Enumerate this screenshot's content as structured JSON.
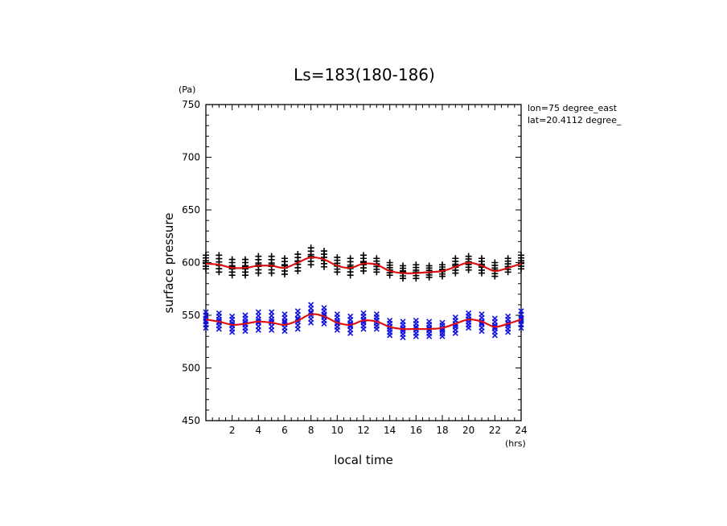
{
  "chart_data": {
    "type": "scatter",
    "title": "Ls=183(180-186)",
    "xlabel": "local time",
    "ylabel": "surface pressure",
    "x_unit": "(hrs)",
    "y_unit": "(Pa)",
    "xlim": [
      0,
      24
    ],
    "ylim": [
      450,
      750
    ],
    "x_ticks": [
      2,
      4,
      6,
      8,
      10,
      12,
      14,
      16,
      18,
      20,
      22,
      24
    ],
    "y_ticks": [
      450,
      500,
      550,
      600,
      650,
      700,
      750
    ],
    "annotations": [
      "lon=75 degree_east",
      "lat=20.4112 degree_"
    ],
    "colors": {
      "upper_markers": "#000000",
      "lower_markers": "#1010e0",
      "fit_line": "#e01010"
    },
    "series": [
      {
        "marker": "plus",
        "color": "#000000",
        "x": [
          0,
          1,
          2,
          3,
          4,
          5,
          6,
          7,
          8,
          9,
          10,
          11,
          12,
          13,
          14,
          15,
          16,
          17,
          18,
          19,
          20,
          21,
          22,
          23,
          24
        ],
        "y": [
          600,
          598,
          596,
          596,
          598,
          598,
          597,
          601,
          606,
          602,
          597,
          596,
          600,
          598,
          593,
          591,
          591,
          591,
          593,
          597,
          600,
          597,
          593,
          596,
          600
        ],
        "min": [
          594,
          591,
          588,
          588,
          590,
          590,
          589,
          592,
          598,
          596,
          591,
          588,
          592,
          591,
          588,
          585,
          585,
          586,
          587,
          590,
          593,
          590,
          587,
          591,
          594
        ],
        "max": [
          607,
          607,
          603,
          603,
          606,
          606,
          604,
          608,
          614,
          611,
          605,
          604,
          607,
          604,
          600,
          597,
          598,
          597,
          598,
          604,
          606,
          604,
          600,
          604,
          607
        ]
      },
      {
        "marker": "cross",
        "color": "#1010e0",
        "x": [
          0,
          1,
          2,
          3,
          4,
          5,
          6,
          7,
          8,
          9,
          10,
          11,
          12,
          13,
          14,
          15,
          16,
          17,
          18,
          19,
          20,
          21,
          22,
          23,
          24
        ],
        "y": [
          545,
          544,
          541,
          542,
          544,
          544,
          543,
          546,
          552,
          550,
          543,
          541,
          545,
          545,
          539,
          537,
          538,
          537,
          537,
          541,
          546,
          543,
          539,
          542,
          546
        ],
        "min": [
          538,
          537,
          534,
          535,
          536,
          536,
          535,
          537,
          543,
          542,
          536,
          533,
          537,
          537,
          531,
          529,
          530,
          530,
          530,
          533,
          538,
          535,
          531,
          534,
          538
        ],
        "max": [
          553,
          552,
          549,
          550,
          553,
          553,
          551,
          554,
          560,
          557,
          551,
          549,
          552,
          551,
          545,
          544,
          545,
          544,
          543,
          548,
          552,
          551,
          547,
          549,
          554
        ]
      },
      {
        "type": "line",
        "color": "#e01010",
        "x": [
          0,
          1,
          2,
          3,
          4,
          5,
          6,
          7,
          8,
          9,
          10,
          11,
          12,
          13,
          14,
          15,
          16,
          17,
          18,
          19,
          20,
          21,
          22,
          23,
          24
        ],
        "y": [
          599,
          598,
          595,
          595,
          597,
          597,
          595,
          600,
          605,
          603,
          597,
          595,
          599,
          598,
          592,
          590,
          590,
          591,
          592,
          596,
          600,
          597,
          592,
          595,
          599
        ]
      },
      {
        "type": "line",
        "color": "#e01010",
        "x": [
          0,
          1,
          2,
          3,
          4,
          5,
          6,
          7,
          8,
          9,
          10,
          11,
          12,
          13,
          14,
          15,
          16,
          17,
          18,
          19,
          20,
          21,
          22,
          23,
          24
        ],
        "y": [
          546,
          544,
          541,
          542,
          544,
          543,
          541,
          545,
          551,
          549,
          543,
          541,
          545,
          544,
          539,
          537,
          537,
          537,
          538,
          542,
          546,
          544,
          539,
          542,
          546
        ]
      }
    ]
  }
}
